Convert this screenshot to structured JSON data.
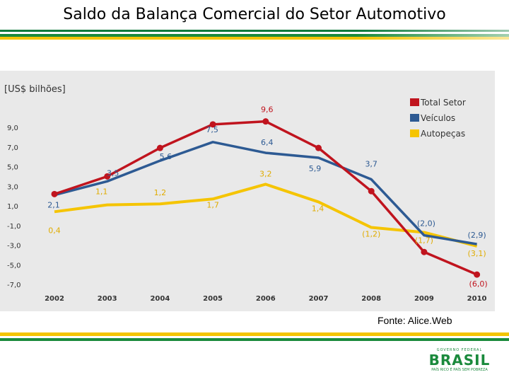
{
  "slide": {
    "title": "Saldo da Balança Comercial do Setor Automotivo",
    "source": "Fonte: Alice.Web"
  },
  "logo": {
    "top": "GOVERNO FEDERAL",
    "main": "BRASIL",
    "sub": "PAÍS RICO É PAÍS SEM POBREZA"
  },
  "colors": {
    "total": "#c0141e",
    "veiculos": "#2d5a93",
    "autopecas": "#f5c400",
    "panel": "#e9e9e9",
    "text": "#333333"
  },
  "chart_data": {
    "type": "line",
    "unit_label": "[US$ bilhões]",
    "x": [
      "2002",
      "2003",
      "2004",
      "2005",
      "2006",
      "2007",
      "2008",
      "2009",
      "2010"
    ],
    "y_ticks": [
      "9,0",
      "7,0",
      "5,0",
      "3,0",
      "1,0",
      "-1,0",
      "-3,0",
      "-5,0",
      "-7,0"
    ],
    "ylim": [
      -7,
      9
    ],
    "grid": false,
    "legend_position": "top-right",
    "series": [
      {
        "key": "total",
        "name": "Total Setor",
        "values": [
          2.2,
          4.0,
          6.9,
          9.3,
          9.6,
          6.9,
          2.5,
          -3.7,
          -6.0
        ],
        "labels": [
          "",
          "",
          "",
          "",
          "9,6",
          "",
          "",
          "",
          "(6,0)"
        ]
      },
      {
        "key": "veiculos",
        "name": "Veículos",
        "values": [
          2.1,
          3.5,
          5.6,
          7.5,
          6.4,
          5.9,
          3.7,
          -2.0,
          -2.9
        ],
        "labels": [
          "2,1",
          "3,5",
          "5,6",
          "7,5",
          "6,4",
          "5,9",
          "3,7",
          "(2,0)",
          "(2,9)"
        ]
      },
      {
        "key": "autopecas",
        "name": "Autopeças",
        "values": [
          0.4,
          1.1,
          1.2,
          1.7,
          3.2,
          1.4,
          -1.2,
          -1.7,
          -3.1
        ],
        "labels": [
          "0,4",
          "1,1",
          "1,2",
          "1,7",
          "3,2",
          "1,4",
          "(1,2)",
          "(1,7)",
          "(3,1)"
        ]
      }
    ]
  }
}
